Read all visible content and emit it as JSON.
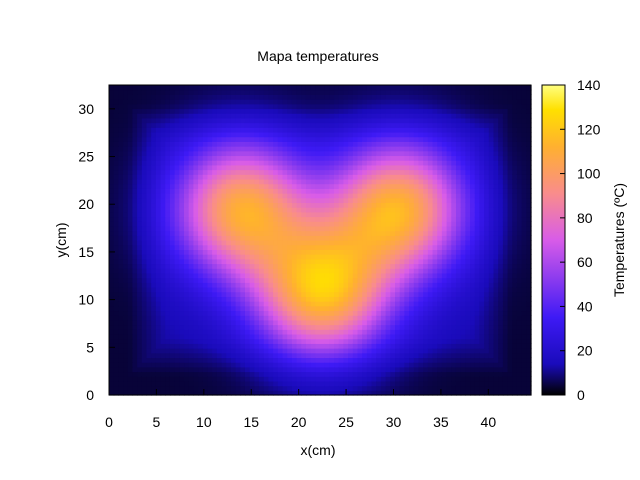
{
  "chart_data": {
    "type": "heatmap",
    "title": "Mapa temperatures",
    "xlabel": "x(cm)",
    "ylabel": "y(cm)",
    "colorbar_label": "Temperatures (ºC)",
    "xlim": [
      0,
      44.5
    ],
    "ylim": [
      0,
      32.5
    ],
    "clim": [
      0,
      140
    ],
    "x_ticks": [
      "0",
      "5",
      "10",
      "15",
      "20",
      "25",
      "30",
      "35",
      "40"
    ],
    "y_ticks": [
      "0",
      "5",
      "10",
      "15",
      "20",
      "25",
      "30"
    ],
    "colorbar_ticks": [
      "0",
      "20",
      "40",
      "60",
      "80",
      "100",
      "120",
      "140"
    ],
    "colormap": "gnuplot pm3d (black-blue-magenta-orange-yellow)",
    "grid": false,
    "hotspots": [
      {
        "x": 14,
        "y": 19.5,
        "value": 107
      },
      {
        "x": 22.5,
        "y": 11,
        "value": 115
      },
      {
        "x": 30.5,
        "y": 19.5,
        "value": 110
      }
    ],
    "background_temperature": 12
  }
}
